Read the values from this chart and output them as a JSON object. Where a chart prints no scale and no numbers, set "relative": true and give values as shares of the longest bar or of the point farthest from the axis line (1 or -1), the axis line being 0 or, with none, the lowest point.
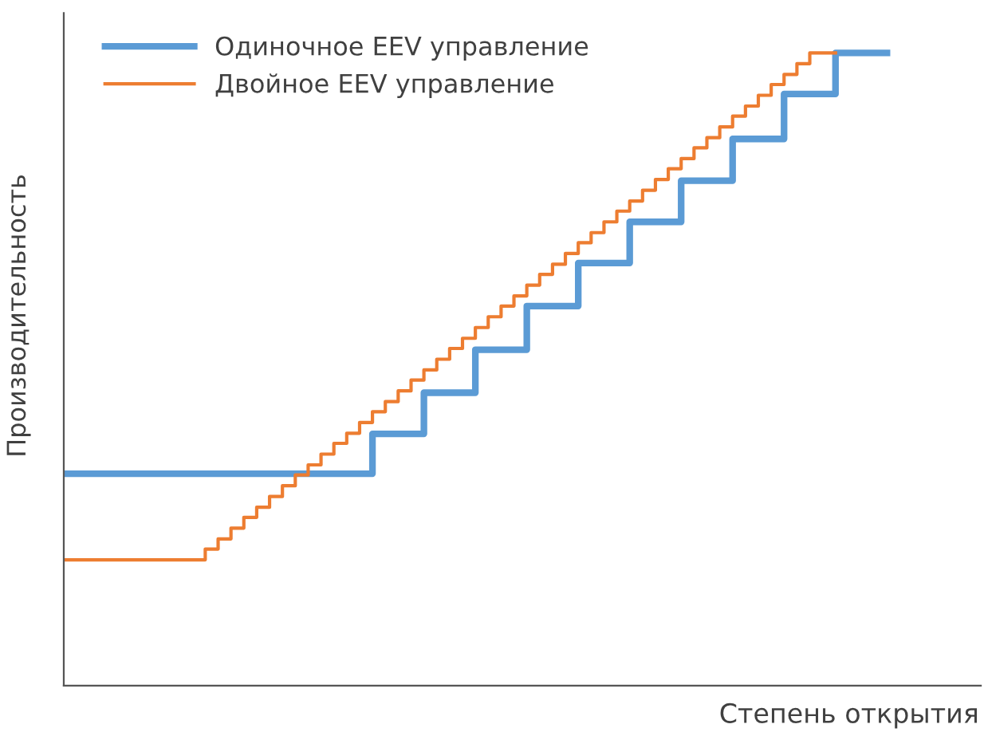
{
  "chart_data": {
    "type": "step",
    "relative": true,
    "xlabel": "Степень открытия",
    "ylabel": "Производительность",
    "legend": "top left",
    "categories": [
      null,
      null,
      null,
      null,
      null,
      null,
      null,
      null,
      null,
      null,
      null,
      null,
      null,
      null,
      null,
      null,
      null,
      null,
      null,
      null,
      null,
      null,
      null,
      null,
      null,
      null,
      null,
      null,
      null,
      null,
      null,
      null,
      null,
      null,
      null,
      null,
      null,
      null,
      null,
      null,
      null,
      null,
      null,
      null,
      null,
      null,
      null,
      null,
      null,
      null,
      null,
      null,
      null,
      null,
      null,
      null,
      null,
      null,
      null,
      null,
      null,
      null,
      null,
      null,
      null
    ],
    "series": [
      {
        "name": "Одиночное EEV управление",
        "color": "#5b9bd5",
        "values": [
          0.335,
          0.335,
          0.335,
          0.335,
          0.335,
          0.335,
          0.335,
          0.335,
          0.335,
          0.335,
          0.335,
          0.335,
          0.335,
          0.335,
          0.335,
          0.335,
          0.335,
          0.335,
          0.335,
          0.335,
          0.335,
          0.335,
          0.335,
          0.335,
          0.398,
          0.398,
          0.398,
          0.398,
          0.463,
          0.463,
          0.463,
          0.463,
          0.531,
          0.531,
          0.531,
          0.531,
          0.6,
          0.6,
          0.6,
          0.6,
          0.668,
          0.668,
          0.668,
          0.668,
          0.733,
          0.733,
          0.733,
          0.733,
          0.798,
          0.798,
          0.798,
          0.798,
          0.864,
          0.864,
          0.864,
          0.864,
          0.935,
          0.935,
          0.935,
          0.935,
          1.0,
          1.0,
          1.0,
          1.0,
          1.0
        ]
      },
      {
        "name": "Двойное EEV управление",
        "color": "#ed7d31",
        "values": [
          0.199,
          0.199,
          0.199,
          0.199,
          0.199,
          0.199,
          0.199,
          0.199,
          0.199,
          0.199,
          0.199,
          0.216,
          0.232,
          0.249,
          0.266,
          0.282,
          0.299,
          0.316,
          0.333,
          0.349,
          0.366,
          0.383,
          0.399,
          0.416,
          0.433,
          0.449,
          0.466,
          0.483,
          0.499,
          0.516,
          0.533,
          0.549,
          0.566,
          0.583,
          0.6,
          0.616,
          0.633,
          0.65,
          0.666,
          0.683,
          0.7,
          0.716,
          0.733,
          0.75,
          0.766,
          0.783,
          0.8,
          0.817,
          0.833,
          0.85,
          0.866,
          0.883,
          0.9,
          0.916,
          0.933,
          0.95,
          0.966,
          0.983,
          1.0,
          1.0,
          1.0,
          null,
          null,
          null,
          null
        ]
      }
    ]
  }
}
